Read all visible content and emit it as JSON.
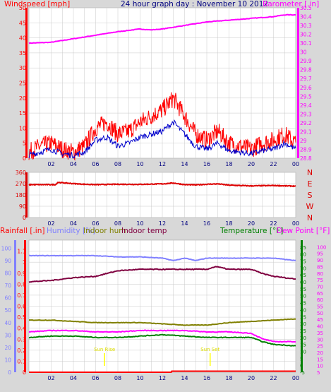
{
  "title": "24 hour graph day : November 10 2012",
  "colors": {
    "panel_bg": "#d8d8d8",
    "plot_bg": "#ffffff",
    "grid": "#c8c8c8",
    "wind_gust": "#ff0000",
    "wind_avg": "#0000cc",
    "wind_dir": "#dd0000",
    "barometer": "#ff00ff",
    "humidity": "#8080ff",
    "indoor_hum": "#808000",
    "indoor_temp": "#800040",
    "temperature": "#008000",
    "dew_point": "#ff00ff",
    "rainfall": "#ff0000",
    "sun": "#ffff00",
    "title_color": "#000080"
  },
  "time_ticks": [
    "02",
    "04",
    "06",
    "08",
    "10",
    "12",
    "14",
    "16",
    "18",
    "20",
    "22",
    "00"
  ],
  "sun_labels": {
    "rise": "Sun Rise",
    "set": "Sun Set"
  },
  "chart_data": [
    {
      "type": "line",
      "title": "24 hour graph day : November 10 2012",
      "left_label": "Windspeed [mph]",
      "right_label": "Barometer [.in]",
      "left_ticks": [
        "0",
        "5",
        "10",
        "15",
        "20",
        "25",
        "30",
        "35",
        "40",
        "45",
        "50"
      ],
      "right_ticks": [
        "28.8",
        "28.9",
        "29",
        "29.1",
        "29.2",
        "29.3",
        "29.4",
        "29.5",
        "29.6",
        "29.7",
        "29.8",
        "29.9",
        "30",
        "30.1",
        "30.2",
        "30.3",
        "30.4",
        "30.5"
      ],
      "ylim_left": [
        0,
        50
      ],
      "ylim_right": [
        28.8,
        30.5
      ],
      "xlim_hours": [
        0,
        24
      ],
      "series": [
        {
          "axis": "right",
          "x": [
            0,
            2,
            4,
            6,
            8,
            10,
            11,
            12,
            14,
            16,
            18,
            20,
            22,
            23,
            24
          ],
          "values": [
            30.1,
            30.11,
            30.15,
            30.19,
            30.23,
            30.26,
            30.25,
            30.26,
            30.3,
            30.34,
            30.36,
            30.38,
            30.4,
            30.42,
            30.42
          ]
        },
        {
          "axis": "left",
          "x": [
            0,
            1,
            2,
            3,
            4,
            5,
            6,
            7,
            8,
            9,
            10,
            11,
            12,
            13,
            14,
            15,
            16,
            17,
            18,
            19,
            20,
            21,
            22,
            23,
            24
          ],
          "values": [
            2,
            4,
            5,
            3,
            2,
            4,
            10,
            12,
            8,
            9,
            12,
            14,
            16,
            20,
            14,
            8,
            6,
            9,
            5,
            4,
            3,
            5,
            6,
            8,
            5
          ]
        },
        {
          "axis": "left",
          "x": [
            0,
            1,
            2,
            3,
            4,
            5,
            6,
            7,
            8,
            9,
            10,
            11,
            12,
            13,
            14,
            15,
            16,
            17,
            18,
            19,
            20,
            21,
            22,
            23,
            24
          ],
          "values": [
            1,
            2,
            3,
            1.5,
            1,
            2,
            6,
            7,
            4,
            5,
            7,
            8,
            9,
            12,
            8,
            4,
            3,
            5,
            2.5,
            2,
            1.5,
            2.5,
            3,
            5,
            3
          ]
        }
      ]
    },
    {
      "type": "line",
      "left_ticks": [
        "0",
        "90",
        "180",
        "270",
        "360"
      ],
      "right_ticks": [
        "N",
        "W",
        "S",
        "E",
        "N"
      ],
      "ylim": [
        0,
        360
      ],
      "xlim_hours": [
        0,
        24
      ],
      "series": [
        {
          "x": [
            0,
            2.4,
            2.6,
            4,
            5,
            6,
            8,
            10,
            12,
            13,
            14,
            15,
            16,
            17,
            18,
            20,
            22,
            24
          ],
          "values": [
            262,
            262,
            280,
            270,
            265,
            262,
            265,
            264,
            268,
            275,
            262,
            260,
            265,
            268,
            258,
            252,
            255,
            250
          ]
        }
      ]
    },
    {
      "type": "line",
      "left_label_1": "Rainfall [.in]",
      "left_label_2": "Humidity [%]",
      "left_label_3": "Indoor hum",
      "left_label_4": "Indoor temp",
      "right_label_1": "Temperature [°F]",
      "right_label_2": "Dew Point [°F]",
      "rain_ticks": [
        "0",
        "0.1",
        "0.2",
        "0.3",
        "0.4",
        "0.5",
        "0.6",
        "0.7",
        "0.8",
        "0.9",
        "1",
        "1.1"
      ],
      "hum_ticks": [
        "0",
        "10",
        "20",
        "30",
        "40",
        "50",
        "60",
        "70",
        "80",
        "90",
        "100"
      ],
      "temp_ticks": [
        "-5",
        "0",
        "5",
        "10",
        "15",
        "20",
        "25",
        "30",
        "35",
        "40",
        "45",
        "50",
        "55",
        "60",
        "65",
        "70",
        "75",
        "80",
        "85"
      ],
      "dew_ticks": [
        "5",
        "10",
        "15",
        "20",
        "25",
        "30",
        "35",
        "40",
        "45",
        "50",
        "55",
        "60",
        "65",
        "70",
        "75",
        "80",
        "85",
        "90",
        "95",
        "100"
      ],
      "ylim_rain": [
        0,
        1.2
      ],
      "ylim_hum": [
        0,
        100
      ],
      "ylim_temp": [
        -5,
        85
      ],
      "ylim_dew": [
        5,
        100
      ],
      "xlim_hours": [
        0,
        24
      ],
      "sunrise_hour": 6.8,
      "sunset_hour": 16.3,
      "series": [
        {
          "name": "Humidity",
          "x": [
            0,
            2,
            4,
            6,
            8,
            10,
            12,
            13,
            14,
            15,
            16,
            18,
            20,
            22,
            24
          ],
          "values": [
            94,
            94,
            94,
            94,
            93,
            93,
            92,
            90,
            92,
            90,
            92,
            92,
            92,
            92,
            90
          ]
        },
        {
          "name": "Indoor hum",
          "x": [
            0,
            2,
            4,
            6,
            8,
            10,
            12,
            14,
            16,
            18,
            20,
            22,
            24
          ],
          "values": [
            42,
            42,
            41,
            40,
            40,
            40,
            39,
            38,
            38,
            40,
            41,
            42,
            43
          ]
        },
        {
          "name": "Indoor temp",
          "x": [
            0,
            2,
            4,
            6,
            8,
            10,
            12,
            14,
            16,
            16.8,
            18,
            20,
            21,
            22,
            24
          ],
          "values": [
            60,
            61,
            63,
            64,
            68,
            69,
            69,
            69,
            69,
            71,
            69,
            69,
            66,
            64,
            62
          ]
        },
        {
          "name": "Temperature",
          "x": [
            0,
            2,
            4,
            6,
            8,
            10,
            12,
            14,
            16,
            18,
            20,
            21,
            22,
            24
          ],
          "values": [
            20,
            21,
            21,
            20,
            20,
            21,
            22,
            21,
            20,
            20,
            20,
            17,
            15,
            14
          ]
        },
        {
          "name": "Dew Point",
          "x": [
            0,
            2,
            4,
            6,
            8,
            10,
            12,
            14,
            16,
            18,
            20,
            21,
            22,
            24
          ],
          "values": [
            24,
            25,
            25,
            24,
            24,
            25,
            25,
            25,
            24,
            24,
            23,
            19,
            17,
            17
          ]
        },
        {
          "name": "Rainfall",
          "x": [
            0,
            12.8,
            12.85,
            24
          ],
          "values": [
            0,
            0,
            0.01,
            0.01
          ]
        }
      ]
    }
  ]
}
